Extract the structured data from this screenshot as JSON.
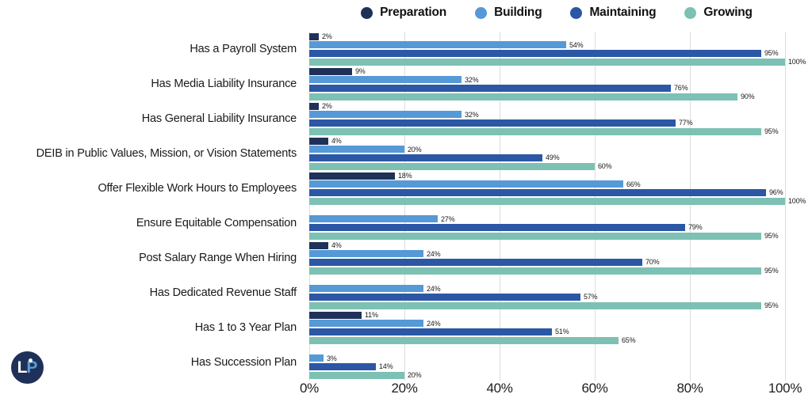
{
  "colors": {
    "preparation": "#1F3158",
    "building": "#5599D6",
    "maintaining": "#2B57A5",
    "growing": "#7CC1B3",
    "gridline": "#dcdcdc",
    "logo_bg": "#1F3158",
    "logo_p": "#5B9BD5"
  },
  "logo": {
    "letter_l": "L",
    "letter_p": "P"
  },
  "chart_data": {
    "type": "bar",
    "orientation": "horizontal",
    "title": "",
    "xlabel": "",
    "ylabel": "",
    "xlim": [
      0,
      100
    ],
    "grid": true,
    "legend_position": "top",
    "value_suffix": "%",
    "ticks": [
      0,
      20,
      40,
      60,
      80,
      100
    ],
    "tick_labels": [
      "0%",
      "20%",
      "40%",
      "60%",
      "80%",
      "100%"
    ],
    "categories": [
      "Has a Payroll System",
      "Has Media Liability Insurance",
      "Has General Liability Insurance",
      "DEIB in Public Values, Mission, or Vision Statements",
      "Offer Flexible Work Hours to Employees",
      "Ensure Equitable Compensation",
      "Post Salary Range When Hiring",
      "Has Dedicated Revenue Staff",
      "Has 1 to 3 Year Plan",
      "Has Succession Plan"
    ],
    "series": [
      {
        "name": "Preparation",
        "color": "#1F3158",
        "values": [
          2,
          9,
          2,
          4,
          18,
          null,
          4,
          null,
          11,
          null
        ]
      },
      {
        "name": "Building",
        "color": "#5599D6",
        "values": [
          54,
          32,
          32,
          20,
          66,
          27,
          24,
          24,
          24,
          3
        ]
      },
      {
        "name": "Maintaining",
        "color": "#2B57A5",
        "values": [
          95,
          76,
          77,
          49,
          96,
          79,
          70,
          57,
          51,
          14
        ]
      },
      {
        "name": "Growing",
        "color": "#7CC1B3",
        "values": [
          100,
          90,
          95,
          60,
          100,
          95,
          95,
          95,
          65,
          20
        ]
      }
    ]
  }
}
